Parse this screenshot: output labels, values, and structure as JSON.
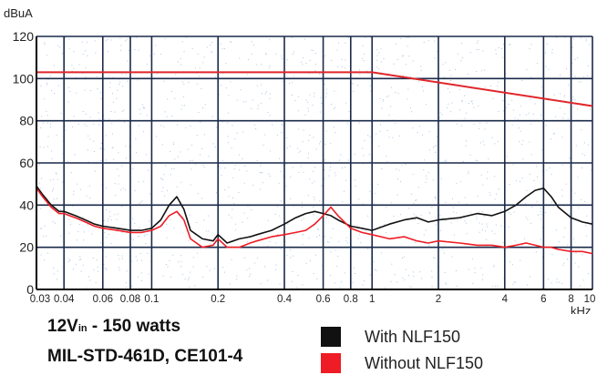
{
  "chart_data": {
    "type": "line",
    "title": "",
    "xlabel": "kHz",
    "ylabel": "dBuA",
    "x_scale": "log",
    "xlim": [
      0.03,
      10
    ],
    "ylim": [
      0,
      120
    ],
    "x_ticks": [
      0.03,
      0.04,
      0.06,
      0.08,
      0.1,
      0.2,
      0.4,
      0.6,
      0.8,
      1,
      2,
      4,
      6,
      8,
      10
    ],
    "x_tick_labels": [
      "0.03",
      "0.04",
      "0.06",
      "0.08",
      "0.1",
      "0.2",
      "0.4",
      "0.6",
      "0.8",
      "1",
      "2",
      "4",
      "6",
      "8",
      "10"
    ],
    "y_ticks": [
      0,
      20,
      40,
      60,
      80,
      100,
      120
    ],
    "y_tick_labels": [
      "0",
      "20",
      "40",
      "60",
      "80",
      "100",
      "120"
    ],
    "grid": true,
    "legend_position": "bottom-right",
    "series": [
      {
        "name": "With NLF150",
        "color": "#111111",
        "x": [
          0.03,
          0.032,
          0.035,
          0.038,
          0.04,
          0.045,
          0.05,
          0.055,
          0.06,
          0.07,
          0.08,
          0.09,
          0.1,
          0.11,
          0.12,
          0.13,
          0.14,
          0.15,
          0.17,
          0.19,
          0.2,
          0.22,
          0.25,
          0.28,
          0.3,
          0.35,
          0.4,
          0.45,
          0.5,
          0.55,
          0.6,
          0.65,
          0.7,
          0.8,
          0.9,
          1.0,
          1.2,
          1.4,
          1.6,
          1.8,
          2.0,
          2.5,
          3.0,
          3.5,
          4.0,
          4.5,
          5.0,
          5.5,
          6.0,
          6.5,
          7.0,
          8.0,
          9.0,
          10.0
        ],
        "y": [
          49,
          45,
          40,
          37,
          37,
          35,
          33,
          31,
          30,
          29,
          28,
          28,
          29,
          33,
          40,
          44,
          38,
          28,
          24,
          23,
          26,
          22,
          24,
          25,
          26,
          28,
          31,
          34,
          36,
          37,
          36,
          35,
          33,
          30,
          29,
          28,
          31,
          33,
          34,
          32,
          33,
          34,
          36,
          35,
          37,
          40,
          44,
          47,
          48,
          44,
          39,
          34,
          32,
          31
        ]
      },
      {
        "name": "Without NLF150",
        "color": "#ee1c24",
        "x": [
          0.03,
          0.032,
          0.035,
          0.038,
          0.04,
          0.045,
          0.05,
          0.055,
          0.06,
          0.07,
          0.08,
          0.09,
          0.1,
          0.11,
          0.12,
          0.13,
          0.14,
          0.15,
          0.17,
          0.19,
          0.2,
          0.22,
          0.25,
          0.28,
          0.3,
          0.35,
          0.4,
          0.45,
          0.5,
          0.55,
          0.6,
          0.65,
          0.7,
          0.8,
          0.9,
          1.0,
          1.2,
          1.4,
          1.6,
          1.8,
          2.0,
          2.5,
          3.0,
          3.5,
          4.0,
          4.5,
          5.0,
          5.5,
          6.0,
          6.5,
          7.0,
          8.0,
          9.0,
          10.0
        ],
        "y": [
          48,
          44,
          39,
          36,
          36,
          34,
          32,
          30,
          29,
          28,
          27,
          27,
          28,
          30,
          35,
          37,
          33,
          24,
          20,
          21,
          24,
          20,
          20,
          22,
          23,
          25,
          26,
          27,
          28,
          31,
          35,
          39,
          35,
          29,
          27,
          26,
          24,
          25,
          23,
          22,
          23,
          22,
          21,
          21,
          20,
          21,
          22,
          21,
          20,
          20,
          19,
          18,
          18,
          17
        ]
      },
      {
        "name": "",
        "color": "#e0262b",
        "x": [
          0.03,
          1.0,
          10.0
        ],
        "y": [
          103,
          103,
          87
        ]
      }
    ]
  },
  "captions": {
    "line1_main": "12V",
    "line1_sub": "in",
    "line1_rest": " - 150 watts",
    "line2": "MIL-STD-461D, CE101-4"
  },
  "legend": {
    "items": [
      {
        "label": "With NLF150",
        "color": "#111111"
      },
      {
        "label": "Without NLF150",
        "color": "#ee1c24"
      }
    ]
  },
  "colors": {
    "grid_dark": "#1a2a4a",
    "grid_light": "#4a6aa0",
    "noise": "#aac4e0",
    "axis": "#000000"
  }
}
